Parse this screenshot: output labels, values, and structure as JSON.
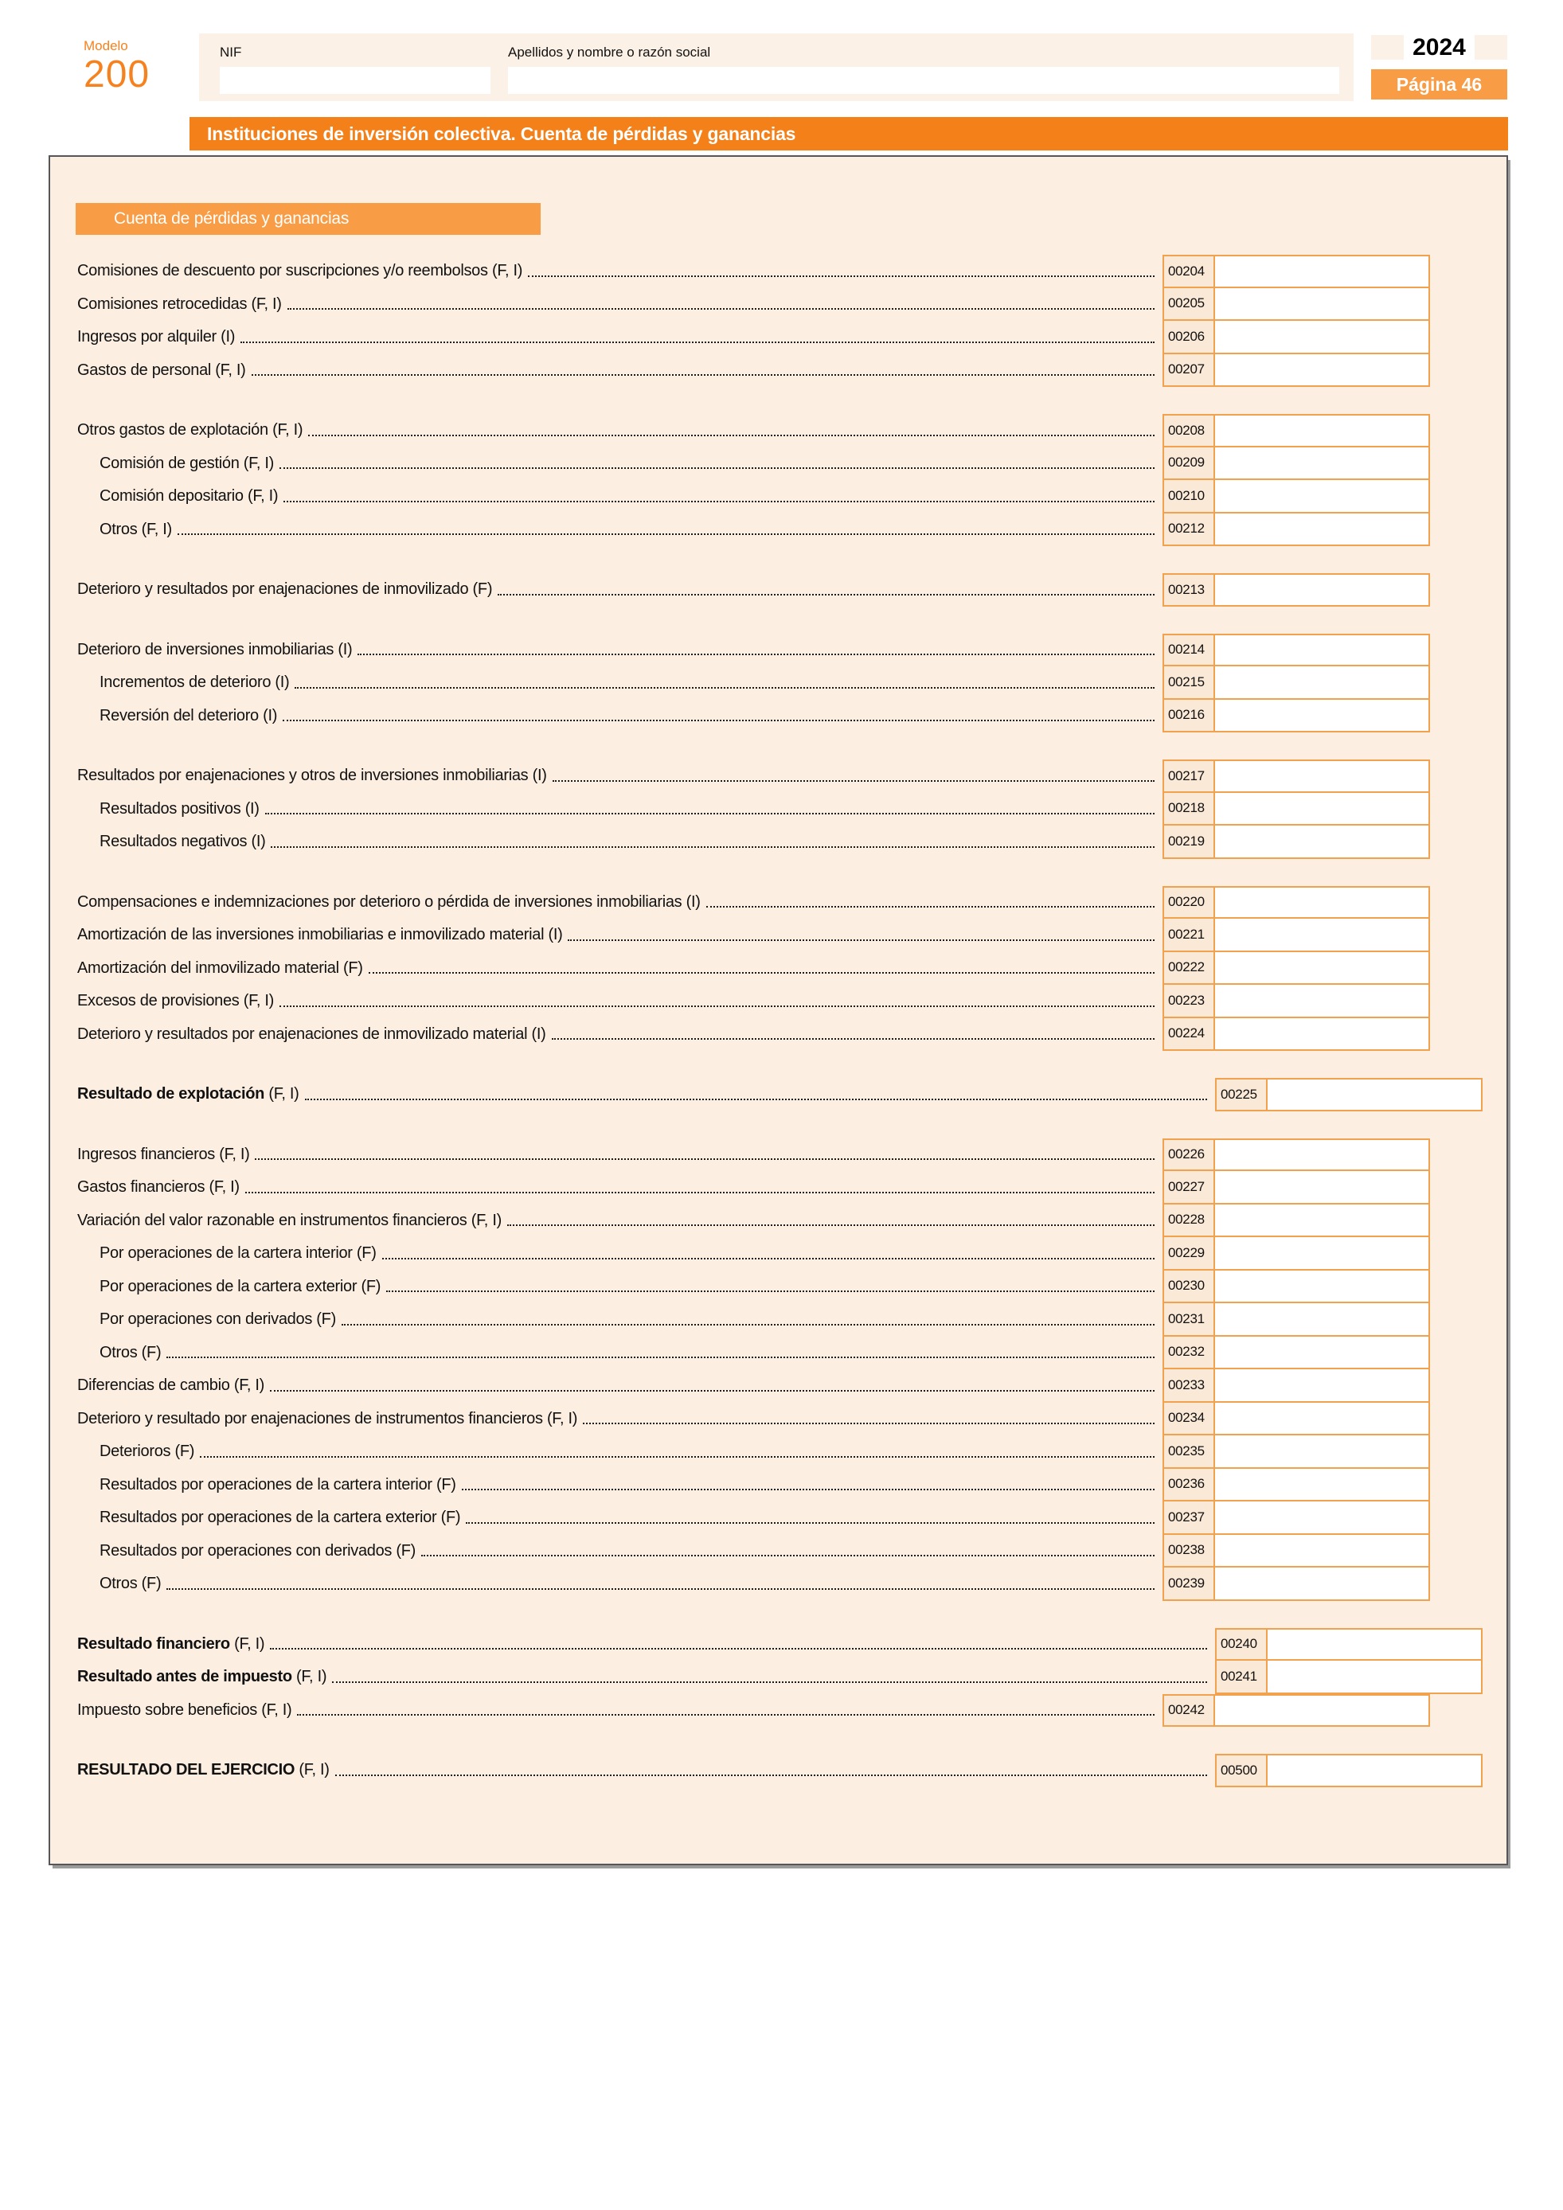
{
  "header": {
    "modelo_label": "Modelo",
    "modelo_number": "200",
    "year": "2024",
    "page_label": "Página 46",
    "nif_label": "NIF",
    "nif_value": "",
    "apellidos_label": "Apellidos y nombre o razón social",
    "apellidos_value": "",
    "banner_title": "Instituciones de inversión colectiva. Cuenta de pérdidas y ganancias"
  },
  "section": {
    "title": "Cuenta de pérdidas y ganancias"
  },
  "colors": {
    "accent_orange": "#f4801a",
    "light_orange": "#f89c45",
    "field_border": "#f2a24e",
    "page_cream": "#fcefe2",
    "band_cream": "#fcf1e6"
  },
  "rows": [
    {
      "label": "Comisiones de descuento por suscripciones y/o reembolsos",
      "suffix": "(F, I)",
      "code": "00204",
      "value": ""
    },
    {
      "label": "Comisiones retrocedidas",
      "suffix": "(F, I)",
      "code": "00205",
      "value": ""
    },
    {
      "label": "Ingresos por alquiler",
      "suffix": "(I)",
      "code": "00206",
      "value": ""
    },
    {
      "label": "Gastos de personal",
      "suffix": "(F, I)",
      "code": "00207",
      "value": ""
    },
    {
      "label": "Otros gastos de explotación",
      "suffix": "(F, I)",
      "code": "00208",
      "value": "",
      "gap": true
    },
    {
      "label": "Comisión de gestión",
      "suffix": "(F, I)",
      "code": "00209",
      "value": "",
      "indent": true
    },
    {
      "label": "Comisión depositario",
      "suffix": "(F, I)",
      "code": "00210",
      "value": "",
      "indent": true
    },
    {
      "label": "Otros",
      "suffix": "(F, I)",
      "code": "00212",
      "value": "",
      "indent": true
    },
    {
      "label": "Deterioro y resultados por enajenaciones de inmovilizado",
      "suffix": "(F)",
      "code": "00213",
      "value": "",
      "gap": true
    },
    {
      "label": "Deterioro de inversiones inmobiliarias",
      "suffix": "(I)",
      "code": "00214",
      "value": "",
      "gap": true
    },
    {
      "label": "Incrementos de deterioro",
      "suffix": "(I)",
      "code": "00215",
      "value": "",
      "indent": true
    },
    {
      "label": "Reversión del deterioro",
      "suffix": "(I)",
      "code": "00216",
      "value": "",
      "indent": true
    },
    {
      "label": "Resultados por enajenaciones y otros de inversiones inmobiliarias",
      "suffix": "(I)",
      "code": "00217",
      "value": "",
      "gap": true
    },
    {
      "label": "Resultados positivos",
      "suffix": "(I)",
      "code": "00218",
      "value": "",
      "indent": true
    },
    {
      "label": "Resultados negativos",
      "suffix": "(I)",
      "code": "00219",
      "value": "",
      "indent": true
    },
    {
      "label": "Compensaciones e indemnizaciones por deterioro o pérdida de inversiones inmobiliarias",
      "suffix": "(I)",
      "code": "00220",
      "value": "",
      "gap": true
    },
    {
      "label": "Amortización de las inversiones inmobiliarias e inmovilizado material",
      "suffix": "(I)",
      "code": "00221",
      "value": ""
    },
    {
      "label": "Amortización del inmovilizado material",
      "suffix": "(F)",
      "code": "00222",
      "value": ""
    },
    {
      "label": "Excesos de provisiones",
      "suffix": "(F, I)",
      "code": "00223",
      "value": ""
    },
    {
      "label": "Deterioro y resultados por enajenaciones de inmovilizado material",
      "suffix": "(I)",
      "code": "00224",
      "value": ""
    },
    {
      "label": "Resultado de explotación",
      "suffix": "(F, I)",
      "code": "00225",
      "value": "",
      "gap": true,
      "bold": true,
      "shift": true
    },
    {
      "label": "Ingresos financieros",
      "suffix": "(F, I)",
      "code": "00226",
      "value": "",
      "gap": true
    },
    {
      "label": "Gastos financieros",
      "suffix": "(F, I)",
      "code": "00227",
      "value": ""
    },
    {
      "label": "Variación del valor razonable en instrumentos financieros",
      "suffix": "(F, I)",
      "code": "00228",
      "value": ""
    },
    {
      "label": "Por operaciones de la cartera interior",
      "suffix": "(F)",
      "code": "00229",
      "value": "",
      "indent": true
    },
    {
      "label": "Por operaciones de la cartera exterior",
      "suffix": "(F)",
      "code": "00230",
      "value": "",
      "indent": true
    },
    {
      "label": "Por operaciones con derivados",
      "suffix": "(F)",
      "code": "00231",
      "value": "",
      "indent": true
    },
    {
      "label": "Otros",
      "suffix": "(F)",
      "code": "00232",
      "value": "",
      "indent": true
    },
    {
      "label": "Diferencias de cambio",
      "suffix": "(F, I)",
      "code": "00233",
      "value": ""
    },
    {
      "label": "Deterioro y resultado por enajenaciones de instrumentos financieros",
      "suffix": "(F, I)",
      "code": "00234",
      "value": ""
    },
    {
      "label": "Deterioros",
      "suffix": "(F)",
      "code": "00235",
      "value": "",
      "indent": true
    },
    {
      "label": "Resultados por operaciones de la cartera interior",
      "suffix": "(F)",
      "code": "00236",
      "value": "",
      "indent": true
    },
    {
      "label": "Resultados por operaciones de la cartera exterior",
      "suffix": "(F)",
      "code": "00237",
      "value": "",
      "indent": true
    },
    {
      "label": "Resultados por operaciones con derivados",
      "suffix": "(F)",
      "code": "00238",
      "value": "",
      "indent": true
    },
    {
      "label": "Otros",
      "suffix": "(F)",
      "code": "00239",
      "value": "",
      "indent": true
    },
    {
      "label": "Resultado financiero",
      "suffix": "(F, I)",
      "code": "00240",
      "value": "",
      "gap": true,
      "bold": true,
      "shift": true
    },
    {
      "label": "Resultado antes de impuesto",
      "suffix": "(F, I)",
      "code": "00241",
      "value": "",
      "bold": true,
      "shift": true
    },
    {
      "label": "Impuesto sobre beneficios",
      "suffix": "(F, I)",
      "code": "00242",
      "value": ""
    },
    {
      "label": "RESULTADO DEL EJERCICIO",
      "suffix": "(F, I)",
      "code": "00500",
      "value": "",
      "gap": true,
      "bold": true,
      "shift": true
    }
  ]
}
